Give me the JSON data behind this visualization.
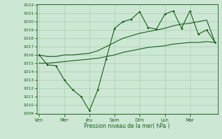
{
  "xlabel": "Pression niveau de la mer( hPa )",
  "bg_color": "#cce8d4",
  "grid_color": "#aaccaa",
  "line_color": "#1a5c1a",
  "ylim_min": 1009,
  "ylim_max": 1022,
  "yticks": [
    1009,
    1010,
    1011,
    1012,
    1013,
    1014,
    1015,
    1016,
    1017,
    1018,
    1019,
    1020,
    1021,
    1022
  ],
  "xtick_pos": [
    0,
    3,
    6,
    9,
    12,
    15,
    18
  ],
  "xtick_labels": [
    "Ven",
    "Mer",
    "Jeu",
    "Sam",
    "Dim",
    "Lun",
    "Mar"
  ],
  "xlim_min": -0.3,
  "xlim_max": 21.3,
  "series1_x": [
    0,
    1,
    2,
    3,
    4,
    5,
    6,
    7,
    8,
    9,
    10,
    11,
    12,
    13,
    14,
    15,
    16,
    17,
    18,
    19,
    20,
    21
  ],
  "series1_y": [
    1016.0,
    1014.8,
    1014.7,
    1013.0,
    1011.8,
    1011.0,
    1009.3,
    1011.8,
    1015.5,
    1019.2,
    1020.0,
    1020.3,
    1021.2,
    1019.3,
    1019.1,
    1020.9,
    1021.3,
    1019.2,
    1021.3,
    1018.5,
    1019.0,
    1017.5
  ],
  "series2_x": [
    0,
    1,
    2,
    3,
    4,
    5,
    6,
    7,
    8,
    9,
    10,
    11,
    12,
    13,
    14,
    15,
    16,
    17,
    18,
    19,
    20,
    21
  ],
  "series2_y": [
    1016.0,
    1015.8,
    1015.8,
    1016.0,
    1016.0,
    1016.1,
    1016.2,
    1016.5,
    1017.0,
    1017.5,
    1018.0,
    1018.3,
    1018.6,
    1018.8,
    1019.0,
    1019.2,
    1019.5,
    1019.7,
    1019.8,
    1020.0,
    1020.2,
    1017.5
  ],
  "series3_x": [
    0,
    1,
    2,
    3,
    4,
    5,
    6,
    7,
    8,
    9,
    10,
    11,
    12,
    13,
    14,
    15,
    16,
    17,
    18,
    19,
    20,
    21
  ],
  "series3_y": [
    1015.0,
    1015.0,
    1015.1,
    1015.2,
    1015.3,
    1015.4,
    1015.5,
    1015.6,
    1015.8,
    1016.0,
    1016.3,
    1016.5,
    1016.7,
    1016.9,
    1017.0,
    1017.1,
    1017.3,
    1017.4,
    1017.5,
    1017.5,
    1017.6,
    1017.5
  ]
}
